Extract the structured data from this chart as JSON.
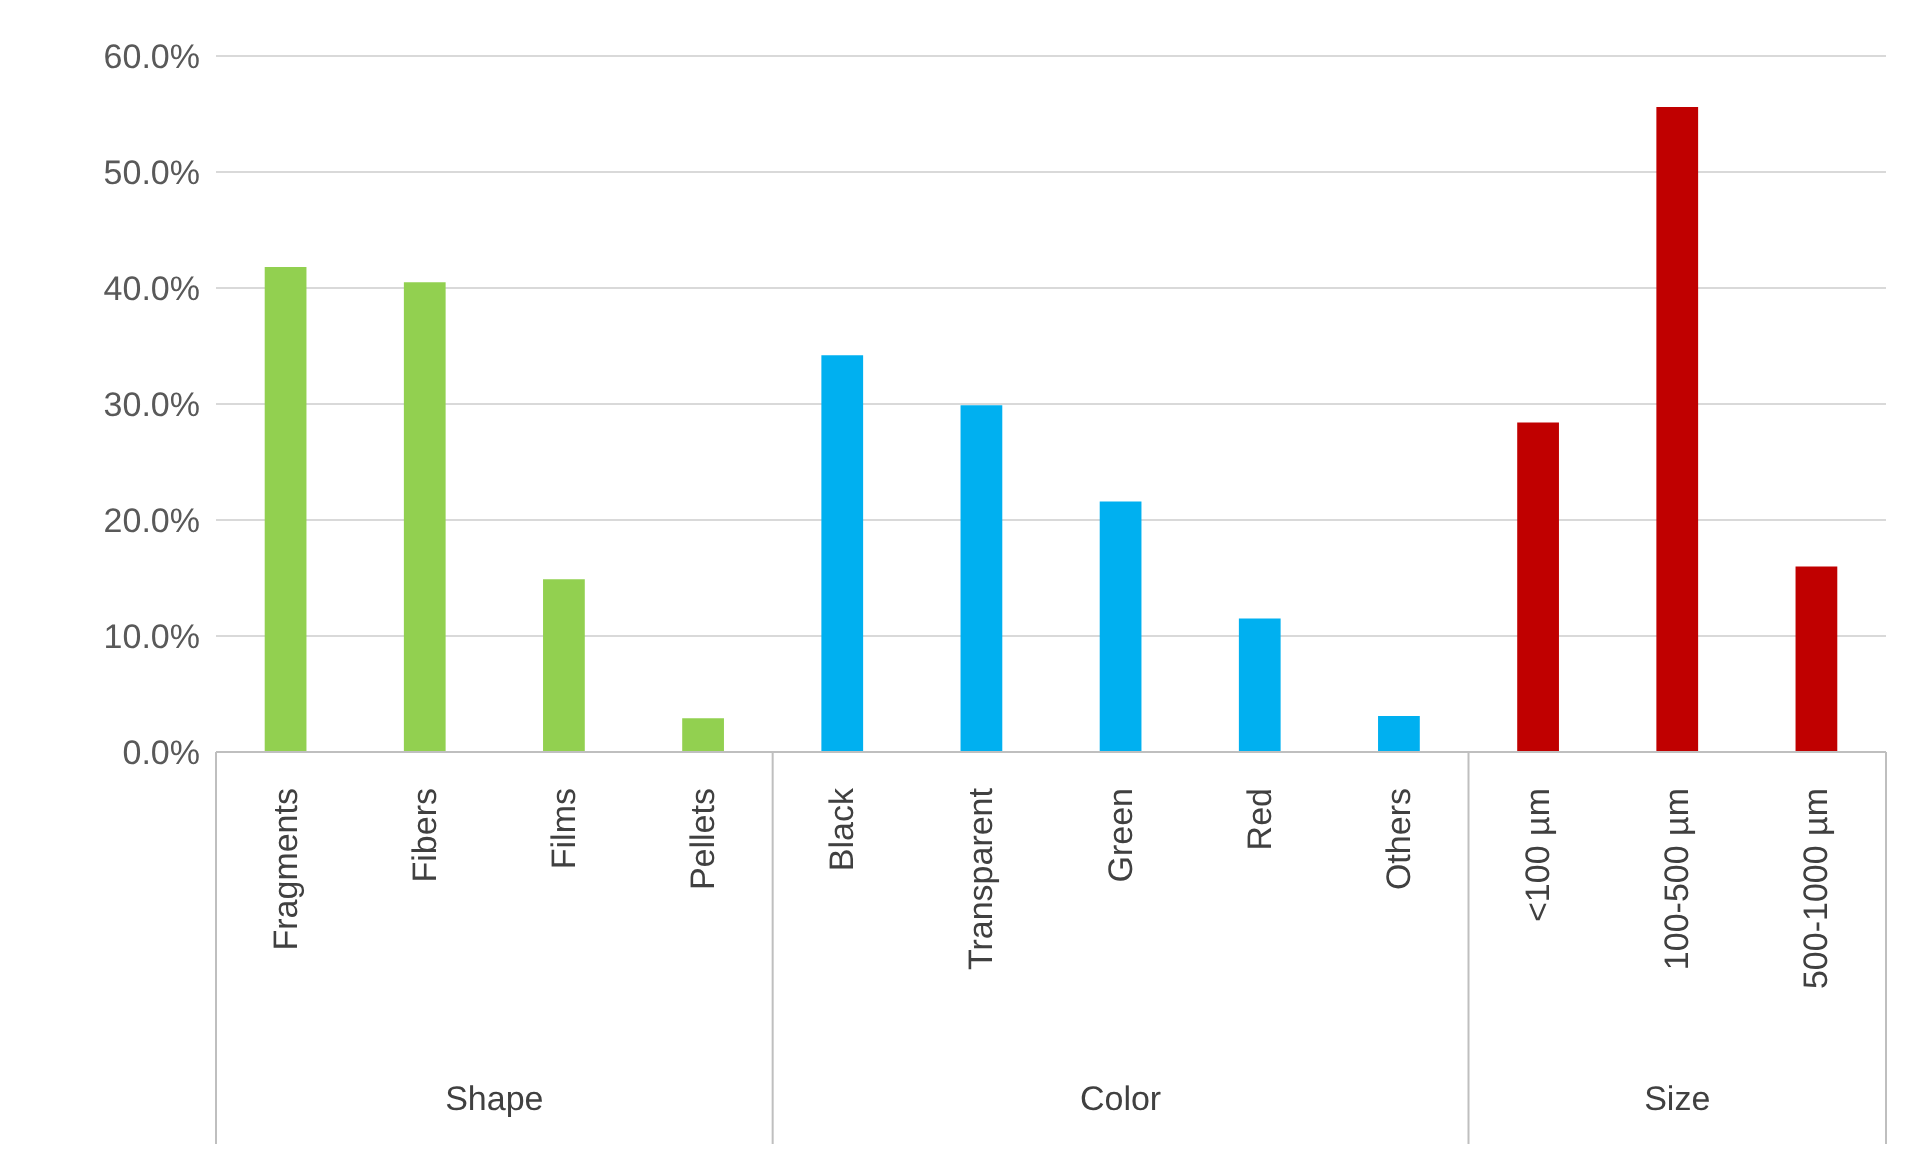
{
  "chart_data": {
    "type": "bar",
    "categories": [
      "Fragments",
      "Fibers",
      "Films",
      "Pellets",
      "Black",
      "Transparent",
      "Green",
      "Red",
      "Others",
      "<100 µm",
      "100-500 µm",
      "500-1000 µm"
    ],
    "series": [
      {
        "color": "#92d050",
        "values": [
          41.8,
          40.5,
          14.9,
          2.9,
          null,
          null,
          null,
          null,
          null,
          null,
          null,
          null
        ]
      },
      {
        "color": "#00b0f0",
        "values": [
          null,
          null,
          null,
          null,
          34.2,
          29.9,
          21.6,
          11.5,
          3.1,
          null,
          null,
          null
        ]
      },
      {
        "color": "#c00000",
        "values": [
          null,
          null,
          null,
          null,
          null,
          null,
          null,
          null,
          null,
          28.4,
          55.6,
          16.0
        ]
      }
    ],
    "ylim": [
      0,
      60
    ],
    "yticks": [
      {
        "value": 0,
        "label": "0.0%"
      },
      {
        "value": 10,
        "label": "10.0%"
      },
      {
        "value": 20,
        "label": "20.0%"
      },
      {
        "value": 30,
        "label": "30.0%"
      },
      {
        "value": 40,
        "label": "40.0%"
      },
      {
        "value": 50,
        "label": "50.0%"
      },
      {
        "value": 60,
        "label": "60.0%"
      }
    ],
    "annotations": [
      "Shape",
      "Color",
      "Size"
    ],
    "grid": "y",
    "legend": false
  }
}
